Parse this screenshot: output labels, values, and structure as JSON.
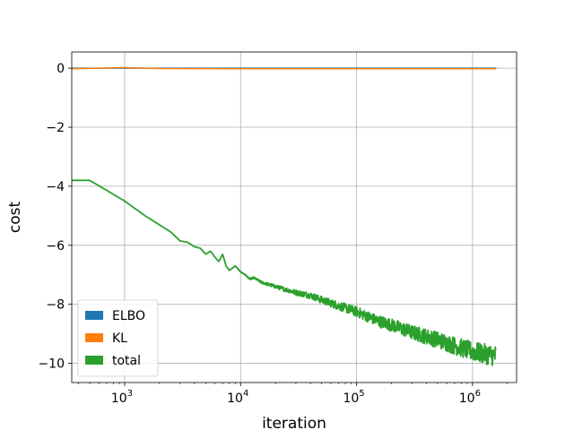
{
  "chart_data": {
    "type": "line",
    "xlabel": "iteration",
    "ylabel": "cost",
    "xscale": "log",
    "xlim": [
      350,
      2400000
    ],
    "ylim": [
      -10.65,
      0.55
    ],
    "grid": true,
    "x_ticks": [
      {
        "value": 1000,
        "base": "10",
        "exp": "3"
      },
      {
        "value": 10000,
        "base": "10",
        "exp": "4"
      },
      {
        "value": 100000,
        "base": "10",
        "exp": "5"
      },
      {
        "value": 1000000,
        "base": "10",
        "exp": "6"
      }
    ],
    "y_ticks": [
      {
        "value": 0,
        "label": "0"
      },
      {
        "value": -2,
        "label": "−2"
      },
      {
        "value": -4,
        "label": "−4"
      },
      {
        "value": -6,
        "label": "−6"
      },
      {
        "value": -8,
        "label": "−8"
      },
      {
        "value": -10,
        "label": "−10"
      }
    ],
    "legend_position": "lower-left",
    "series": [
      {
        "name": "ELBO",
        "color": "#1f77b4",
        "x": [
          350,
          1600000
        ],
        "y": [
          0,
          0
        ]
      },
      {
        "name": "KL",
        "color": "#ff7f0e",
        "x": [
          350,
          1000,
          2000,
          10000,
          100000,
          1600000
        ],
        "y": [
          -0.02,
          0.02,
          -0.01,
          -0.02,
          -0.02,
          -0.02
        ]
      },
      {
        "name": "total",
        "color": "#2ca02c",
        "x": [
          350,
          500,
          1000,
          1500,
          2500,
          3000,
          3500,
          4000,
          4500,
          5000,
          5500,
          6000,
          6500,
          7000,
          7500,
          8000,
          9000,
          10000,
          11000,
          12000,
          13000,
          15000,
          20000,
          30000,
          40000,
          50000,
          70000,
          100000,
          150000,
          200000,
          300000,
          500000,
          700000,
          1000000,
          1600000
        ],
        "y": [
          -3.8,
          -3.8,
          -4.5,
          -5.0,
          -5.55,
          -5.85,
          -5.9,
          -6.05,
          -6.1,
          -6.3,
          -6.2,
          -6.4,
          -6.55,
          -6.3,
          -6.7,
          -6.85,
          -6.7,
          -6.9,
          -7.0,
          -7.15,
          -7.1,
          -7.25,
          -7.4,
          -7.6,
          -7.7,
          -7.85,
          -8.05,
          -8.25,
          -8.55,
          -8.7,
          -8.95,
          -9.2,
          -9.4,
          -9.6,
          -9.75
        ],
        "noise_amplitude": 0.45
      }
    ]
  }
}
